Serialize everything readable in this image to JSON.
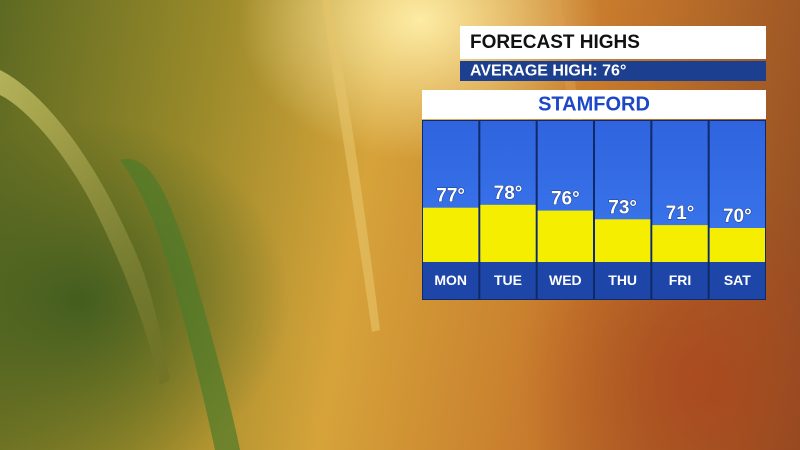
{
  "chart_data": {
    "type": "bar",
    "title": "FORECAST HIGHS",
    "subtitle": "AVERAGE HIGH: 76°",
    "location": "STAMFORD",
    "categories": [
      "MON",
      "TUE",
      "WED",
      "THU",
      "FRI",
      "SAT"
    ],
    "values": [
      77,
      78,
      76,
      73,
      71,
      70
    ],
    "value_labels": [
      "77°",
      "78°",
      "76°",
      "73°",
      "71°",
      "70°"
    ],
    "color": "#f5ee00"
  }
}
